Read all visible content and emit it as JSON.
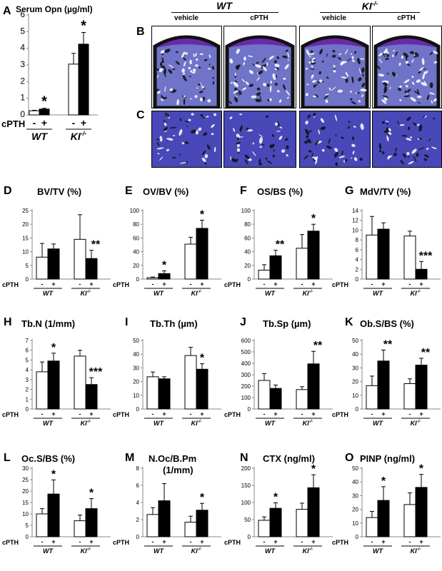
{
  "colors": {
    "control_bar": "#ffffff",
    "treated_bar": "#000000",
    "stain_bg": "#4848b8",
    "stain_dark": "#111111"
  },
  "histology": {
    "panel_b_label": "B",
    "panel_c_label": "C",
    "wt_title": "WT",
    "ki_title": "KI",
    "ki_sup": "-/-",
    "vehicle_label": "vehicle",
    "cpth_label": "cPTH"
  },
  "chart_data": [
    {
      "id": "A",
      "panel_label": "A",
      "type": "bar",
      "title": "Serum Opn (µg/ml)",
      "x_title": "cPTH",
      "groups": [
        "WT",
        "KI"
      ],
      "group_sup": [
        "",
        "-/-"
      ],
      "tick_labels": [
        "-",
        "+"
      ],
      "series": [
        {
          "values": [
            0.25,
            3.05
          ]
        },
        {
          "values": [
            0.35,
            4.25
          ]
        }
      ],
      "errors": [
        [
          0.03,
          0.65
        ],
        [
          0.05,
          0.7
        ]
      ],
      "stars": [
        [
          null,
          null
        ],
        [
          "*",
          "*"
        ]
      ],
      "yticks": [
        0,
        1,
        2,
        3,
        4,
        5,
        6
      ],
      "ylim": [
        0,
        6
      ]
    },
    {
      "id": "D",
      "panel_label": "D",
      "type": "bar",
      "title": "BV/TV (%)",
      "x_title": "cPTH",
      "groups": [
        "WT",
        "KI"
      ],
      "group_sup": [
        "",
        "-/-"
      ],
      "tick_labels": [
        "-",
        "+"
      ],
      "series": [
        {
          "values": [
            8,
            14.5
          ]
        },
        {
          "values": [
            11,
            7.5
          ]
        }
      ],
      "errors": [
        [
          5,
          9
        ],
        [
          1.8,
          3
        ]
      ],
      "stars": [
        [
          null,
          null
        ],
        [
          null,
          "**"
        ]
      ],
      "yticks": [
        0,
        5,
        10,
        15,
        20,
        25
      ],
      "ylim": [
        0,
        25
      ]
    },
    {
      "id": "E",
      "panel_label": "E",
      "type": "bar",
      "title": "OV/BV (%)",
      "x_title": "cPTH",
      "groups": [
        "WT",
        "KI"
      ],
      "group_sup": [
        "",
        "-/-"
      ],
      "tick_labels": [
        "-",
        "+"
      ],
      "series": [
        {
          "values": [
            2,
            51
          ]
        },
        {
          "values": [
            8,
            74
          ]
        }
      ],
      "errors": [
        [
          1,
          10
        ],
        [
          4,
          12
        ]
      ],
      "stars": [
        [
          null,
          null
        ],
        [
          "*",
          "*"
        ]
      ],
      "yticks": [
        0,
        20,
        40,
        60,
        80,
        100
      ],
      "ylim": [
        0,
        100
      ]
    },
    {
      "id": "F",
      "panel_label": "F",
      "type": "bar",
      "title": "OS/BS (%)",
      "x_title": "cPTH",
      "groups": [
        "WT",
        "KI"
      ],
      "group_sup": [
        "",
        "-/-"
      ],
      "tick_labels": [
        "-",
        "+"
      ],
      "series": [
        {
          "values": [
            13,
            45
          ]
        },
        {
          "values": [
            34,
            70
          ]
        }
      ],
      "errors": [
        [
          8,
          20
        ],
        [
          8,
          10
        ]
      ],
      "stars": [
        [
          null,
          null
        ],
        [
          "**",
          "*"
        ]
      ],
      "yticks": [
        0,
        20,
        40,
        60,
        80,
        100
      ],
      "ylim": [
        0,
        100
      ]
    },
    {
      "id": "G",
      "panel_label": "G",
      "type": "bar",
      "title": "MdV/TV (%)",
      "x_title": "cPTH",
      "groups": [
        "WT",
        "KI"
      ],
      "group_sup": [
        "",
        "-/-"
      ],
      "tick_labels": [
        "-",
        "+"
      ],
      "series": [
        {
          "values": [
            9,
            8.8
          ]
        },
        {
          "values": [
            10.2,
            2
          ]
        }
      ],
      "errors": [
        [
          3.8,
          1
        ],
        [
          1.3,
          1.6
        ]
      ],
      "stars": [
        [
          null,
          null
        ],
        [
          null,
          "***"
        ]
      ],
      "yticks": [
        0,
        2,
        4,
        6,
        8,
        10,
        12,
        14
      ],
      "ylim": [
        0,
        14
      ]
    },
    {
      "id": "H",
      "panel_label": "H",
      "type": "bar",
      "title": "Tb.N (1/mm)",
      "x_title": "cPTH",
      "groups": [
        "WT",
        "KI"
      ],
      "group_sup": [
        "",
        "-/-"
      ],
      "tick_labels": [
        "-",
        "+"
      ],
      "series": [
        {
          "values": [
            3.8,
            5.4
          ]
        },
        {
          "values": [
            4.9,
            2.5
          ]
        }
      ],
      "errors": [
        [
          1,
          0.6
        ],
        [
          0.8,
          0.7
        ]
      ],
      "stars": [
        [
          null,
          null
        ],
        [
          "*",
          "***"
        ]
      ],
      "yticks": [
        0,
        1,
        2,
        3,
        4,
        5,
        6,
        7
      ],
      "ylim": [
        0,
        7
      ]
    },
    {
      "id": "I",
      "panel_label": "I",
      "type": "bar",
      "title": "Tb.Th (µm)",
      "x_title": "cPTH",
      "groups": [
        "WT",
        "KI"
      ],
      "group_sup": [
        "",
        "-/-"
      ],
      "tick_labels": [
        "-",
        "+"
      ],
      "series": [
        {
          "values": [
            23.5,
            39
          ]
        },
        {
          "values": [
            22,
            29
          ]
        }
      ],
      "errors": [
        [
          3.5,
          6
        ],
        [
          1.5,
          4
        ]
      ],
      "stars": [
        [
          null,
          null
        ],
        [
          null,
          "*"
        ]
      ],
      "yticks": [
        0,
        10,
        20,
        30,
        40,
        50
      ],
      "ylim": [
        0,
        50
      ]
    },
    {
      "id": "J",
      "panel_label": "J",
      "type": "bar",
      "title": "Tb.Sp (µm)",
      "x_title": "cPTH",
      "groups": [
        "WT",
        "KI"
      ],
      "group_sup": [
        "",
        "-/-"
      ],
      "tick_labels": [
        "-",
        "+"
      ],
      "series": [
        {
          "values": [
            250,
            170
          ]
        },
        {
          "values": [
            180,
            395
          ]
        }
      ],
      "errors": [
        [
          60,
          25
        ],
        [
          30,
          110
        ]
      ],
      "stars": [
        [
          null,
          null
        ],
        [
          null,
          "**"
        ]
      ],
      "yticks": [
        0,
        100,
        200,
        300,
        400,
        500,
        600
      ],
      "ylim": [
        0,
        600
      ]
    },
    {
      "id": "K",
      "panel_label": "K",
      "type": "bar",
      "title": "Ob.S/BS (%)",
      "x_title": "cPTH",
      "groups": [
        "WT",
        "KI"
      ],
      "group_sup": [
        "",
        "-/-"
      ],
      "tick_labels": [
        "-",
        "+"
      ],
      "series": [
        {
          "values": [
            17,
            18.5
          ]
        },
        {
          "values": [
            35,
            32
          ]
        }
      ],
      "errors": [
        [
          7,
          3.5
        ],
        [
          8,
          5
        ]
      ],
      "stars": [
        [
          null,
          null
        ],
        [
          "**",
          "**"
        ]
      ],
      "yticks": [
        0,
        10,
        20,
        30,
        40,
        50
      ],
      "ylim": [
        0,
        50
      ]
    },
    {
      "id": "L",
      "panel_label": "L",
      "type": "bar",
      "title": "Oc.S/BS (%)",
      "x_title": "cPTH",
      "groups": [
        "WT",
        "KI"
      ],
      "group_sup": [
        "",
        "-/-"
      ],
      "tick_labels": [
        "-",
        "+"
      ],
      "series": [
        {
          "values": [
            10,
            7
          ]
        },
        {
          "values": [
            18.7,
            12.3
          ]
        }
      ],
      "errors": [
        [
          2.3,
          2.5
        ],
        [
          6.2,
          4.4
        ]
      ],
      "stars": [
        [
          null,
          null
        ],
        [
          "*",
          "*"
        ]
      ],
      "yticks": [
        0,
        5,
        10,
        15,
        20,
        25,
        30
      ],
      "ylim": [
        0,
        30
      ]
    },
    {
      "id": "M",
      "panel_label": "M",
      "type": "bar",
      "title": "N.Oc/B.Pm",
      "subtitle": "(1/mm)",
      "x_title": "cPTH",
      "groups": [
        "WT",
        "KI"
      ],
      "group_sup": [
        "",
        "-/-"
      ],
      "tick_labels": [
        "-",
        "+"
      ],
      "series": [
        {
          "values": [
            2.6,
            1.7
          ]
        },
        {
          "values": [
            4.2,
            3.1
          ]
        }
      ],
      "errors": [
        [
          0.8,
          0.7
        ],
        [
          2,
          0.8
        ]
      ],
      "stars": [
        [
          null,
          null
        ],
        [
          null,
          "*"
        ]
      ],
      "yticks": [
        0,
        2,
        4,
        6,
        8
      ],
      "ylim": [
        0,
        8
      ]
    },
    {
      "id": "N",
      "panel_label": "N",
      "type": "bar",
      "title": "CTX (ng/ml)",
      "x_title": "cPTH",
      "groups": [
        "WT",
        "KI"
      ],
      "group_sup": [
        "",
        "-/-"
      ],
      "tick_labels": [
        "-",
        "+"
      ],
      "series": [
        {
          "values": [
            48,
            80
          ]
        },
        {
          "values": [
            83,
            143
          ]
        }
      ],
      "errors": [
        [
          10,
          18
        ],
        [
          16,
          38
        ]
      ],
      "stars": [
        [
          null,
          null
        ],
        [
          "*",
          "*"
        ]
      ],
      "yticks": [
        0,
        50,
        100,
        150,
        200
      ],
      "ylim": [
        0,
        200
      ]
    },
    {
      "id": "O",
      "panel_label": "O",
      "type": "bar",
      "title": "PINP (ng/ml)",
      "x_title": "cPTH",
      "groups": [
        "WT",
        "KI"
      ],
      "group_sup": [
        "",
        "-/-"
      ],
      "tick_labels": [
        "-",
        "+"
      ],
      "series": [
        {
          "values": [
            14,
            23.5
          ]
        },
        {
          "values": [
            26.5,
            36
          ]
        }
      ],
      "errors": [
        [
          4.5,
          8.5
        ],
        [
          10,
          9.5
        ]
      ],
      "stars": [
        [
          null,
          null
        ],
        [
          "*",
          "*"
        ]
      ],
      "yticks": [
        0,
        10,
        20,
        30,
        40,
        50
      ],
      "ylim": [
        0,
        50
      ]
    }
  ]
}
